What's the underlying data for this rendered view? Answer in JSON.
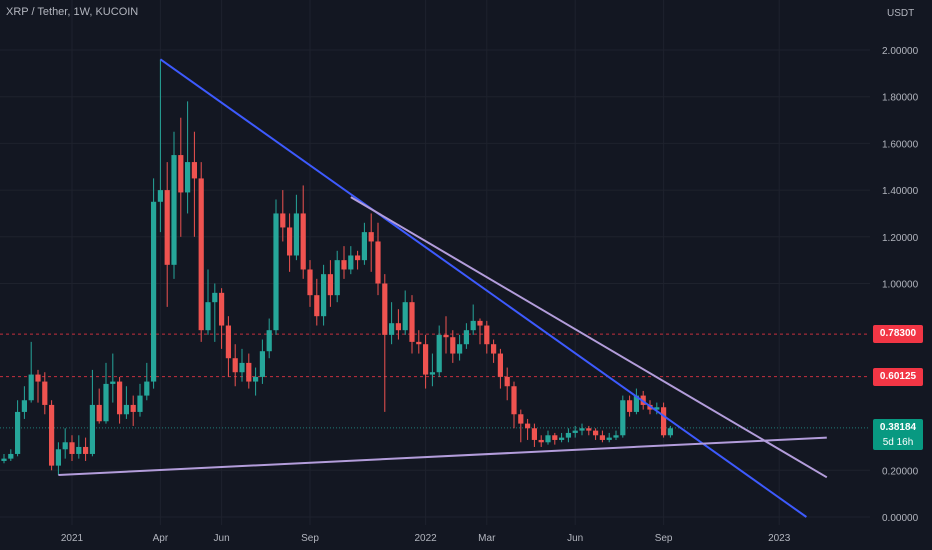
{
  "header": {
    "symbol": "XRP / Tether, 1W, KUCOIN",
    "currency": "USDT"
  },
  "price_tags": [
    {
      "label": "0.78300",
      "value": 0.783,
      "style": "red"
    },
    {
      "label": "0.60125",
      "value": 0.60125,
      "style": "red"
    },
    {
      "label": "0.38184",
      "value": 0.38184,
      "style": "green"
    }
  ],
  "countdown": "5d 16h",
  "colors": {
    "background": "#131722",
    "up": "#26a69a",
    "down": "#ef5350",
    "trend_blue": "#3d5afe",
    "trend_purple": "#b39ddb",
    "level_red": "#f23645",
    "grid": "#1e222d"
  },
  "chart_data": {
    "type": "candlestick",
    "title": "XRP / Tether, 1W, KUCOIN",
    "y_unit": "USDT",
    "ylim": [
      0.0,
      2.1
    ],
    "y_ticks": [
      {
        "value": 2.0,
        "label": "2.00000"
      },
      {
        "value": 1.8,
        "label": "1.80000"
      },
      {
        "value": 1.6,
        "label": "1.60000"
      },
      {
        "value": 1.4,
        "label": "1.40000"
      },
      {
        "value": 1.2,
        "label": "1.20000"
      },
      {
        "value": 1.0,
        "label": "1.00000"
      },
      {
        "value": 0.2,
        "label": "0.20000"
      },
      {
        "value": 0.0,
        "label": "0.00000"
      }
    ],
    "x_ticks": [
      {
        "label": "2021",
        "week": 10
      },
      {
        "label": "Apr",
        "week": 23
      },
      {
        "label": "Jun",
        "week": 32
      },
      {
        "label": "Sep",
        "week": 45
      },
      {
        "label": "2022",
        "week": 62
      },
      {
        "label": "Mar",
        "week": 71
      },
      {
        "label": "Jun",
        "week": 84
      },
      {
        "label": "Sep",
        "week": 97
      },
      {
        "label": "2023",
        "week": 114
      }
    ],
    "candles": [
      [
        0.24,
        0.25,
        0.27,
        0.23
      ],
      [
        0.25,
        0.27,
        0.29,
        0.24
      ],
      [
        0.27,
        0.45,
        0.5,
        0.26
      ],
      [
        0.45,
        0.5,
        0.56,
        0.42
      ],
      [
        0.5,
        0.61,
        0.75,
        0.49
      ],
      [
        0.61,
        0.58,
        0.63,
        0.49
      ],
      [
        0.58,
        0.48,
        0.62,
        0.44
      ],
      [
        0.48,
        0.22,
        0.5,
        0.2
      ],
      [
        0.22,
        0.29,
        0.32,
        0.18
      ],
      [
        0.29,
        0.32,
        0.38,
        0.25
      ],
      [
        0.32,
        0.27,
        0.35,
        0.24
      ],
      [
        0.27,
        0.3,
        0.35,
        0.25
      ],
      [
        0.3,
        0.27,
        0.34,
        0.24
      ],
      [
        0.27,
        0.48,
        0.63,
        0.26
      ],
      [
        0.48,
        0.41,
        0.55,
        0.4
      ],
      [
        0.41,
        0.57,
        0.66,
        0.4
      ],
      [
        0.57,
        0.58,
        0.7,
        0.49
      ],
      [
        0.58,
        0.44,
        0.6,
        0.4
      ],
      [
        0.44,
        0.48,
        0.56,
        0.42
      ],
      [
        0.48,
        0.45,
        0.52,
        0.39
      ],
      [
        0.45,
        0.52,
        0.57,
        0.43
      ],
      [
        0.52,
        0.58,
        0.66,
        0.5
      ],
      [
        0.58,
        1.35,
        1.45,
        0.55
      ],
      [
        1.35,
        1.4,
        1.96,
        1.22
      ],
      [
        1.4,
        1.08,
        1.52,
        0.9
      ],
      [
        1.08,
        1.55,
        1.65,
        1.02
      ],
      [
        1.55,
        1.39,
        1.71,
        1.2
      ],
      [
        1.39,
        1.52,
        1.78,
        1.3
      ],
      [
        1.52,
        1.45,
        1.65,
        1.2
      ],
      [
        1.45,
        0.8,
        1.52,
        0.75
      ],
      [
        0.8,
        0.92,
        1.06,
        0.78
      ],
      [
        0.92,
        0.96,
        1.0,
        0.75
      ],
      [
        0.96,
        0.82,
        0.98,
        0.72
      ],
      [
        0.82,
        0.68,
        0.86,
        0.6
      ],
      [
        0.68,
        0.62,
        0.74,
        0.56
      ],
      [
        0.62,
        0.66,
        0.72,
        0.58
      ],
      [
        0.66,
        0.58,
        0.7,
        0.55
      ],
      [
        0.58,
        0.6,
        0.64,
        0.52
      ],
      [
        0.6,
        0.71,
        0.76,
        0.57
      ],
      [
        0.71,
        0.8,
        0.85,
        0.68
      ],
      [
        0.8,
        1.3,
        1.36,
        0.78
      ],
      [
        1.3,
        1.24,
        1.4,
        1.18
      ],
      [
        1.24,
        1.12,
        1.3,
        1.05
      ],
      [
        1.12,
        1.3,
        1.38,
        1.1
      ],
      [
        1.3,
        1.06,
        1.42,
        1.02
      ],
      [
        1.06,
        0.95,
        1.1,
        0.9
      ],
      [
        0.95,
        0.86,
        1.02,
        0.82
      ],
      [
        0.86,
        1.04,
        1.08,
        0.82
      ],
      [
        1.04,
        0.95,
        1.1,
        0.9
      ],
      [
        0.95,
        1.1,
        1.14,
        0.92
      ],
      [
        1.1,
        1.06,
        1.16,
        1.02
      ],
      [
        1.06,
        1.12,
        1.16,
        1.04
      ],
      [
        1.12,
        1.1,
        1.14,
        1.06
      ],
      [
        1.1,
        1.22,
        1.26,
        1.08
      ],
      [
        1.22,
        1.18,
        1.3,
        1.05
      ],
      [
        1.18,
        1.0,
        1.26,
        0.95
      ],
      [
        1.0,
        0.78,
        1.04,
        0.45
      ],
      [
        0.78,
        0.83,
        0.92,
        0.74
      ],
      [
        0.83,
        0.8,
        0.89,
        0.76
      ],
      [
        0.8,
        0.92,
        0.97,
        0.78
      ],
      [
        0.92,
        0.75,
        0.95,
        0.7
      ],
      [
        0.75,
        0.74,
        0.8,
        0.7
      ],
      [
        0.74,
        0.61,
        0.78,
        0.55
      ],
      [
        0.61,
        0.62,
        0.7,
        0.56
      ],
      [
        0.62,
        0.78,
        0.82,
        0.6
      ],
      [
        0.78,
        0.77,
        0.86,
        0.7
      ],
      [
        0.77,
        0.7,
        0.8,
        0.66
      ],
      [
        0.7,
        0.74,
        0.78,
        0.67
      ],
      [
        0.74,
        0.8,
        0.83,
        0.72
      ],
      [
        0.8,
        0.84,
        0.91,
        0.78
      ],
      [
        0.84,
        0.82,
        0.85,
        0.74
      ],
      [
        0.82,
        0.74,
        0.84,
        0.7
      ],
      [
        0.74,
        0.7,
        0.76,
        0.66
      ],
      [
        0.7,
        0.6,
        0.72,
        0.55
      ],
      [
        0.6,
        0.56,
        0.64,
        0.5
      ],
      [
        0.56,
        0.44,
        0.58,
        0.38
      ],
      [
        0.44,
        0.4,
        0.46,
        0.32
      ],
      [
        0.4,
        0.38,
        0.42,
        0.33
      ],
      [
        0.38,
        0.33,
        0.4,
        0.3
      ],
      [
        0.33,
        0.32,
        0.35,
        0.3
      ],
      [
        0.32,
        0.35,
        0.37,
        0.31
      ],
      [
        0.35,
        0.33,
        0.36,
        0.31
      ],
      [
        0.33,
        0.34,
        0.36,
        0.32
      ],
      [
        0.34,
        0.36,
        0.38,
        0.32
      ],
      [
        0.36,
        0.37,
        0.39,
        0.34
      ],
      [
        0.37,
        0.38,
        0.4,
        0.35
      ],
      [
        0.38,
        0.37,
        0.39,
        0.35
      ],
      [
        0.37,
        0.35,
        0.38,
        0.33
      ],
      [
        0.35,
        0.33,
        0.37,
        0.32
      ],
      [
        0.33,
        0.34,
        0.36,
        0.32
      ],
      [
        0.34,
        0.35,
        0.37,
        0.33
      ],
      [
        0.35,
        0.5,
        0.52,
        0.34
      ],
      [
        0.5,
        0.45,
        0.52,
        0.43
      ],
      [
        0.45,
        0.52,
        0.55,
        0.44
      ],
      [
        0.52,
        0.48,
        0.54,
        0.46
      ],
      [
        0.48,
        0.46,
        0.5,
        0.44
      ],
      [
        0.46,
        0.47,
        0.49,
        0.44
      ],
      [
        0.47,
        0.35,
        0.49,
        0.34
      ],
      [
        0.35,
        0.38,
        0.39,
        0.34
      ]
    ],
    "trendlines": [
      {
        "color": "blue",
        "points": [
          [
            23,
            1.96
          ],
          [
            118,
            0.0
          ]
        ]
      },
      {
        "color": "purple",
        "points": [
          [
            51,
            1.37
          ],
          [
            121,
            0.17
          ]
        ]
      },
      {
        "color": "purple",
        "points": [
          [
            8,
            0.18
          ],
          [
            121,
            0.34
          ]
        ]
      }
    ],
    "horizontal_levels": [
      0.783,
      0.60125
    ],
    "last_price": 0.38184
  }
}
